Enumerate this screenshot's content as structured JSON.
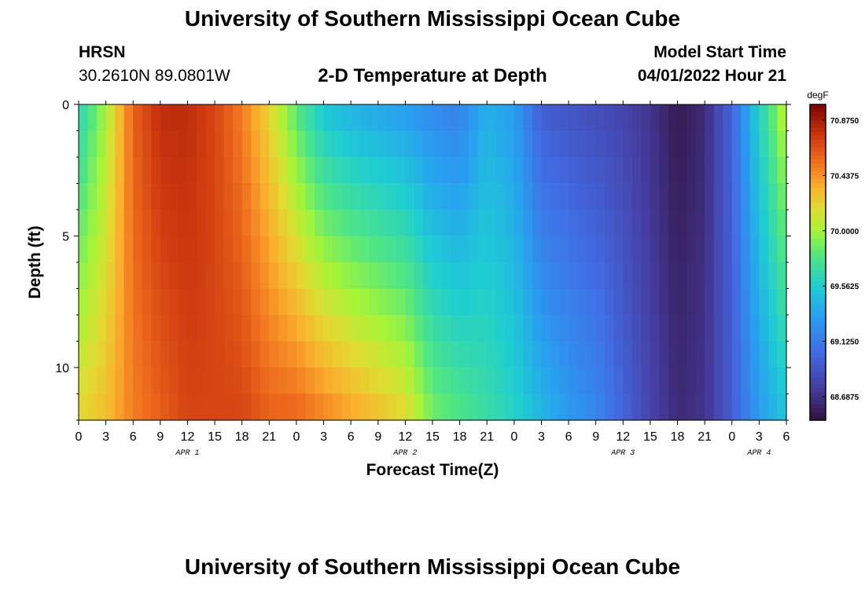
{
  "header": {
    "title": "University of Southern Mississippi Ocean Cube",
    "station": "HRSN",
    "coordinates": "30.2610N  89.0801W",
    "plot_title": "2-D Temperature at Depth",
    "model_start_label": "Model Start Time",
    "model_start_value": "04/01/2022 Hour 21"
  },
  "footer": {
    "title": "University of Southern Mississippi Ocean Cube"
  },
  "chart_data": {
    "type": "heatmap",
    "title": "2-D Temperature at Depth",
    "xlabel": "Forecast Time(Z)",
    "ylabel": "Depth (ft)",
    "x_range_hours": [
      0,
      78
    ],
    "y_range_ft": [
      0,
      12
    ],
    "x_tick_labels": [
      "0",
      "3",
      "6",
      "9",
      "12",
      "15",
      "18",
      "21",
      "0",
      "3",
      "6",
      "9",
      "12",
      "15",
      "18",
      "21",
      "0",
      "3",
      "6",
      "9",
      "12",
      "15",
      "18",
      "21",
      "0",
      "3",
      "6"
    ],
    "x_date_labels": [
      "APR 1",
      "APR 2",
      "APR 3",
      "APR 4"
    ],
    "x_date_hours": [
      12,
      36,
      60,
      75
    ],
    "y_tick_labels": [
      "0",
      "5",
      "10"
    ],
    "y_tick_values": [
      0,
      5,
      10
    ],
    "colorbar": {
      "unit": "degF",
      "min": 68.5,
      "max": 71.0,
      "tick_values": [
        70.875,
        70.4375,
        70.0,
        69.5625,
        69.125,
        68.6875
      ],
      "tick_labels": [
        "70.8750",
        "70.4375",
        "70.0000",
        "69.5625",
        "69.1250",
        "68.6875"
      ]
    },
    "series": [
      {
        "hour": 0,
        "surface": 69.6,
        "bottom": 70.2
      },
      {
        "hour": 3,
        "surface": 70.0,
        "bottom": 70.3
      },
      {
        "hour": 6,
        "surface": 70.6,
        "bottom": 70.5
      },
      {
        "hour": 9,
        "surface": 70.8,
        "bottom": 70.6
      },
      {
        "hour": 12,
        "surface": 70.8,
        "bottom": 70.7
      },
      {
        "hour": 15,
        "surface": 70.7,
        "bottom": 70.7
      },
      {
        "hour": 18,
        "surface": 70.5,
        "bottom": 70.7
      },
      {
        "hour": 21,
        "surface": 70.2,
        "bottom": 70.6
      },
      {
        "hour": 24,
        "surface": 69.8,
        "bottom": 70.6
      },
      {
        "hour": 27,
        "surface": 69.5,
        "bottom": 70.5
      },
      {
        "hour": 30,
        "surface": 69.4,
        "bottom": 70.4
      },
      {
        "hour": 33,
        "surface": 69.35,
        "bottom": 70.3
      },
      {
        "hour": 36,
        "surface": 69.3,
        "bottom": 70.2
      },
      {
        "hour": 39,
        "surface": 69.2,
        "bottom": 69.9
      },
      {
        "hour": 42,
        "surface": 69.15,
        "bottom": 69.8
      },
      {
        "hour": 45,
        "surface": 69.4,
        "bottom": 69.7
      },
      {
        "hour": 48,
        "surface": 69.3,
        "bottom": 69.6
      },
      {
        "hour": 51,
        "surface": 68.95,
        "bottom": 69.45
      },
      {
        "hour": 54,
        "surface": 68.9,
        "bottom": 69.3
      },
      {
        "hour": 57,
        "surface": 68.85,
        "bottom": 69.2
      },
      {
        "hour": 60,
        "surface": 68.8,
        "bottom": 69.0
      },
      {
        "hour": 63,
        "surface": 68.7,
        "bottom": 68.8
      },
      {
        "hour": 66,
        "surface": 68.55,
        "bottom": 68.65
      },
      {
        "hour": 69,
        "surface": 68.65,
        "bottom": 68.7
      },
      {
        "hour": 72,
        "surface": 69.0,
        "bottom": 68.95
      },
      {
        "hour": 75,
        "surface": 69.6,
        "bottom": 69.3
      },
      {
        "hour": 78,
        "surface": 70.1,
        "bottom": 69.5
      }
    ]
  }
}
